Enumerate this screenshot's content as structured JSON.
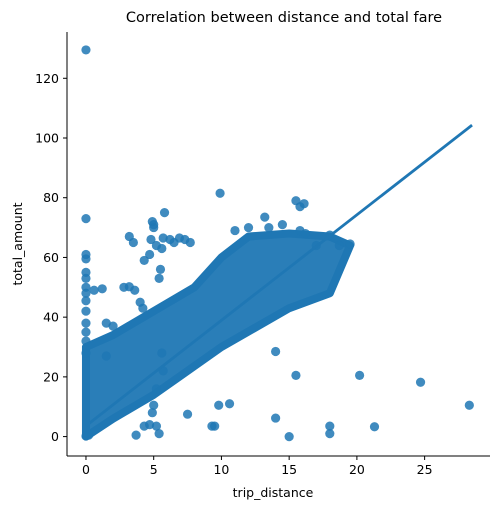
{
  "chart_data": {
    "type": "scatter",
    "title": "Correlation between distance and total fare",
    "xlabel": "trip_distance",
    "ylabel": "total_amount",
    "xlim": [
      -1.4,
      29.9
    ],
    "ylim": [
      -6.5,
      135.5
    ],
    "xticks": [
      0,
      5,
      10,
      15,
      20,
      25
    ],
    "yticks": [
      0,
      20,
      40,
      60,
      80,
      100,
      120
    ],
    "grid": false,
    "legend": "none",
    "color": "#1f77b4",
    "regression_line": {
      "x": [
        0,
        28.5
      ],
      "y": [
        3.6,
        104.3
      ]
    },
    "dense_band": {
      "lower": [
        [
          0,
          0
        ],
        [
          2,
          6
        ],
        [
          5,
          14
        ],
        [
          10,
          30
        ],
        [
          15,
          43
        ],
        [
          18,
          48
        ]
      ],
      "upper": [
        [
          0,
          30
        ],
        [
          2,
          34
        ],
        [
          5,
          42
        ],
        [
          8,
          50
        ],
        [
          10,
          60
        ],
        [
          12,
          67
        ],
        [
          15,
          68
        ],
        [
          18,
          67
        ],
        [
          19.5,
          64
        ]
      ]
    },
    "points": [
      [
        0,
        129.5
      ],
      [
        0,
        73
      ],
      [
        0,
        61
      ],
      [
        0,
        59.5
      ],
      [
        0,
        55
      ],
      [
        0,
        53
      ],
      [
        0,
        50
      ],
      [
        0,
        48
      ],
      [
        0,
        45.5
      ],
      [
        0,
        42
      ],
      [
        0,
        38
      ],
      [
        0,
        35
      ],
      [
        0,
        32
      ],
      [
        0,
        28
      ],
      [
        0,
        0.2
      ],
      [
        0.2,
        0.5
      ],
      [
        0.6,
        49
      ],
      [
        1.2,
        49.5
      ],
      [
        1.5,
        38
      ],
      [
        2,
        37
      ],
      [
        1.5,
        27
      ],
      [
        2.8,
        50
      ],
      [
        3.2,
        50.2
      ],
      [
        3.2,
        67
      ],
      [
        3.5,
        65
      ],
      [
        3.6,
        49
      ],
      [
        4.0,
        45
      ],
      [
        4.2,
        43
      ],
      [
        4.3,
        59
      ],
      [
        4.7,
        61
      ],
      [
        4.8,
        66
      ],
      [
        4.9,
        72
      ],
      [
        5.0,
        70
      ],
      [
        5.0,
        71
      ],
      [
        5.2,
        64
      ],
      [
        5.4,
        53
      ],
      [
        5.5,
        56
      ],
      [
        5.6,
        63
      ],
      [
        5.7,
        66.5
      ],
      [
        5.8,
        75
      ],
      [
        6.2,
        66
      ],
      [
        6.5,
        65
      ],
      [
        6.9,
        66.5
      ],
      [
        7.3,
        66
      ],
      [
        7.7,
        65
      ],
      [
        5.6,
        28
      ],
      [
        5.7,
        22
      ],
      [
        5.2,
        16
      ],
      [
        5.0,
        10.5
      ],
      [
        4.9,
        8
      ],
      [
        5.2,
        3.5
      ],
      [
        4.7,
        4
      ],
      [
        4.3,
        3.5
      ],
      [
        3.7,
        0.5
      ],
      [
        5.4,
        1
      ],
      [
        7.5,
        7.5
      ],
      [
        9.5,
        3.5
      ],
      [
        9.8,
        10.5
      ],
      [
        10.6,
        11
      ],
      [
        9.9,
        81.5
      ],
      [
        13.2,
        73.5
      ],
      [
        15.8,
        69
      ],
      [
        15.8,
        77
      ],
      [
        16.1,
        78
      ],
      [
        15.5,
        79
      ],
      [
        16.2,
        68
      ],
      [
        17.0,
        64
      ],
      [
        18.0,
        67.5
      ],
      [
        18.7,
        64
      ],
      [
        19.5,
        64.5
      ],
      [
        14.0,
        28.5
      ],
      [
        15.5,
        20.5
      ],
      [
        20.2,
        20.5
      ],
      [
        24.7,
        18.2
      ],
      [
        28.3,
        10.5
      ],
      [
        14.0,
        6.2
      ],
      [
        15.0,
        0
      ],
      [
        18.0,
        3.5
      ],
      [
        18.0,
        1
      ],
      [
        21.3,
        3.3
      ],
      [
        9.3,
        3.5
      ],
      [
        13.5,
        70
      ],
      [
        14.5,
        71
      ],
      [
        12.0,
        70
      ],
      [
        11.0,
        69
      ]
    ]
  }
}
